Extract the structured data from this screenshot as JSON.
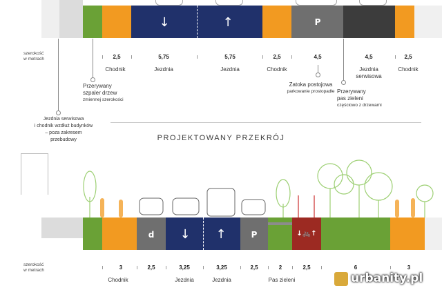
{
  "colors": {
    "green": "#6aa136",
    "orange": "#f29a21",
    "navy": "#20316b",
    "dark_gray": "#3c3c3c",
    "mid_gray": "#6f6f6f",
    "red": "#9c2a22",
    "sidewalk_gray": "#dcdcdc",
    "tree_green": "#9ccf72"
  },
  "existing": {
    "axis_label": "szerokość\nw metrach",
    "widths": [
      "2,5",
      "5,75",
      "5,75",
      "2,5",
      "4,5",
      "4,5",
      "2,5"
    ],
    "labels": {
      "chodnik_1": "Chodnik",
      "jezdnia_1": "Jezdnia",
      "jezdnia_2": "Jezdnia",
      "chodnik_2": "Chodnik",
      "jezdnia_serwisowa": "Jezdnia\nserwisowa",
      "chodnik_3": "Chodnik"
    },
    "notes": {
      "szpaler": {
        "title": "Przerywany\nszpaler drzew",
        "sub": "zmiennej szerokości"
      },
      "zatoka": {
        "title": "Zatoka postojowa",
        "sub": "parkowanie prostopadłe"
      },
      "pas_zieleni": {
        "title": "Przerywany\npas zieleni",
        "sub": "częściowo z drzewami"
      },
      "serwisowa_note": "Jezdnia serwisowa\ni chodnik wzdłuż budynków\n– poza zakresem\nprzebudowy"
    },
    "lane_symbols": {
      "down": "↓",
      "up": "↑",
      "parking": "P"
    }
  },
  "section_title": "PROJEKTOWANY PRZEKRÓJ",
  "projected": {
    "axis_label": "szerokość\nw metrach",
    "widths": [
      "3",
      "2,5",
      "3,25",
      "3,25",
      "2,5",
      "2",
      "2,5",
      "6",
      "3"
    ],
    "labels": {
      "chodnik": "Chodnik",
      "jezdnia_1": "Jezdnia",
      "jezdnia_2": "Jezdnia",
      "pas_zieleni": "Pas zieleni"
    },
    "lane_symbols": {
      "bus": "d",
      "down": "↓",
      "up": "↑",
      "parking": "P",
      "bike": "↓🚲↑"
    }
  },
  "watermark": "urbanity.pl"
}
